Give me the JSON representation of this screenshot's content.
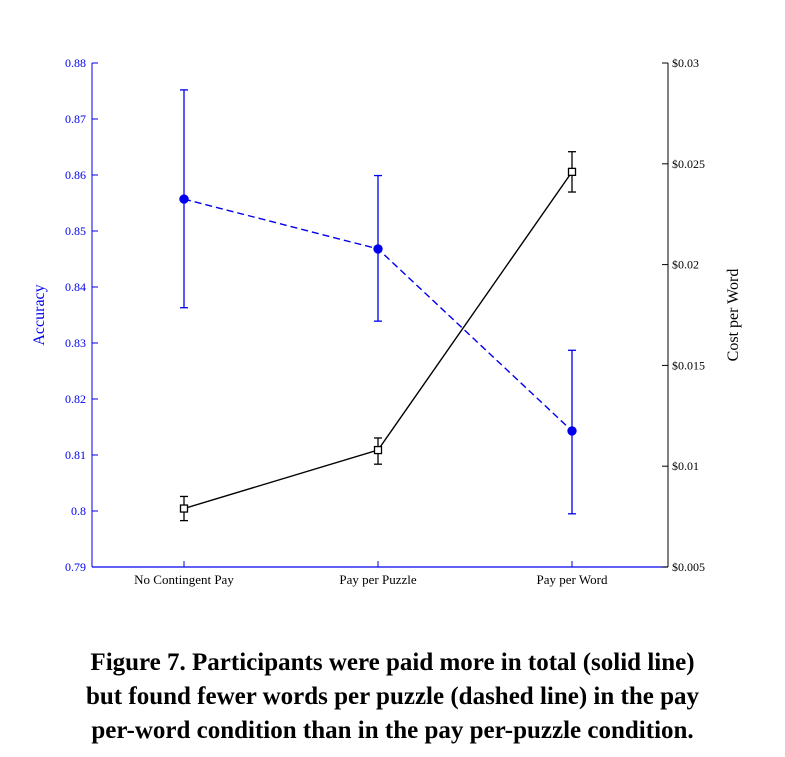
{
  "chart_data": {
    "type": "line",
    "categories": [
      "No Contingent Pay",
      "Pay per Puzzle",
      "Pay per Word"
    ],
    "y_left": {
      "label": "Accuracy",
      "range": [
        0.79,
        0.88
      ],
      "ticks": [
        0.79,
        0.8,
        0.81,
        0.82,
        0.83,
        0.84,
        0.85,
        0.86,
        0.87,
        0.88
      ],
      "tick_labels": [
        "0.79",
        "0.8",
        "0.81",
        "0.82",
        "0.83",
        "0.84",
        "0.85",
        "0.86",
        "0.87",
        "0.88"
      ],
      "color": "#0000ee"
    },
    "y_right": {
      "label": "Cost per Word",
      "range": [
        0.005,
        0.03
      ],
      "ticks": [
        0.005,
        0.01,
        0.015,
        0.02,
        0.025,
        0.03
      ],
      "tick_labels": [
        "$0.005",
        "$0.01",
        "$0.015",
        "$0.02",
        "$0.025",
        "$0.03"
      ],
      "color": "#000000"
    },
    "series": [
      {
        "axis": "left",
        "style": "dashed",
        "marker": "filled-circle",
        "color": "#0000ee",
        "values": [
          0.8557,
          0.8468,
          0.8143
        ],
        "err_low": [
          0.8363,
          0.8339,
          0.7995
        ],
        "err_high": [
          0.8752,
          0.8599,
          0.8287
        ]
      },
      {
        "axis": "right",
        "style": "solid",
        "marker": "open-square",
        "color": "#000000",
        "values": [
          0.0079,
          0.0108,
          0.0246
        ],
        "err_low": [
          0.0073,
          0.0101,
          0.0236
        ],
        "err_high": [
          0.0085,
          0.0114,
          0.0256
        ]
      }
    ]
  },
  "caption": {
    "line1": "Figure 7. Participants were paid more in total (solid line)",
    "line2": "but found fewer words per puzzle (dashed line) in the pay",
    "line3": "per-word condition than in the pay per-puzzle condition."
  }
}
